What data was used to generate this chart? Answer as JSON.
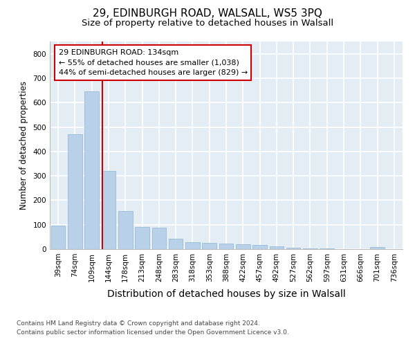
{
  "title1": "29, EDINBURGH ROAD, WALSALL, WS5 3PQ",
  "title2": "Size of property relative to detached houses in Walsall",
  "xlabel": "Distribution of detached houses by size in Walsall",
  "ylabel": "Number of detached properties",
  "categories": [
    "39sqm",
    "74sqm",
    "109sqm",
    "144sqm",
    "178sqm",
    "213sqm",
    "248sqm",
    "283sqm",
    "318sqm",
    "353sqm",
    "388sqm",
    "422sqm",
    "457sqm",
    "492sqm",
    "527sqm",
    "562sqm",
    "597sqm",
    "631sqm",
    "666sqm",
    "701sqm",
    "736sqm"
  ],
  "values": [
    95,
    470,
    645,
    320,
    157,
    90,
    88,
    43,
    27,
    25,
    22,
    20,
    18,
    10,
    5,
    3,
    2,
    1,
    1,
    8,
    0
  ],
  "bar_color": "#b8d0e8",
  "bar_edge_color": "#8ab4d4",
  "bg_color": "#e4ecf4",
  "grid_color": "#ffffff",
  "annotation_box_text": "29 EDINBURGH ROAD: 134sqm\n← 55% of detached houses are smaller (1,038)\n44% of semi-detached houses are larger (829) →",
  "annotation_box_color": "#cc0000",
  "vline_x": 2.62,
  "ylim": [
    0,
    850
  ],
  "yticks": [
    0,
    100,
    200,
    300,
    400,
    500,
    600,
    700,
    800
  ],
  "footer1": "Contains HM Land Registry data © Crown copyright and database right 2024.",
  "footer2": "Contains public sector information licensed under the Open Government Licence v3.0.",
  "title1_fontsize": 11,
  "title2_fontsize": 9.5,
  "xlabel_fontsize": 10,
  "ylabel_fontsize": 8.5,
  "tick_fontsize": 7.5,
  "footer_fontsize": 6.5,
  "annot_fontsize": 8.0
}
